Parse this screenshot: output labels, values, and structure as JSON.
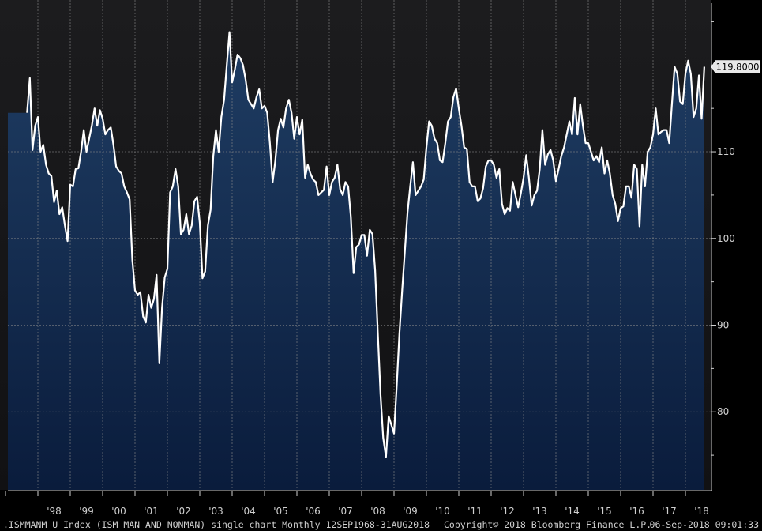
{
  "chart_data": {
    "type": "area",
    "y_axis": {
      "ticks": [
        80,
        90,
        100,
        110
      ],
      "ylim": [
        71,
        127.5
      ]
    },
    "x_axis": {
      "ticks": [
        "'98",
        "'99",
        "'00",
        "'01",
        "'02",
        "'03",
        "'04",
        "'05",
        "'06",
        "'07",
        "'08",
        "'09",
        "'10",
        "'11",
        "'12",
        "'13",
        "'14",
        "'15",
        "'16",
        "'17",
        "'18"
      ]
    },
    "last_value_label": "119.8000",
    "grid": true,
    "series": [
      {
        "points": [
          [
            "1997-09",
            114.5
          ],
          [
            "1997-10",
            118.5
          ],
          [
            "1997-11",
            110.2
          ],
          [
            "1997-12",
            113.0
          ],
          [
            "1998-01",
            114.0
          ],
          [
            "1998-02",
            110.0
          ],
          [
            "1998-03",
            110.8
          ],
          [
            "1998-04",
            108.5
          ],
          [
            "1998-05",
            107.5
          ],
          [
            "1998-06",
            107.2
          ],
          [
            "1998-07",
            104.2
          ],
          [
            "1998-08",
            105.5
          ],
          [
            "1998-09",
            102.8
          ],
          [
            "1998-10",
            103.6
          ],
          [
            "1998-11",
            101.5
          ],
          [
            "1998-12",
            99.7
          ],
          [
            "1999-01",
            106.2
          ],
          [
            "1999-02",
            106.0
          ],
          [
            "1999-03",
            108.0
          ],
          [
            "1999-04",
            108.1
          ],
          [
            "1999-05",
            110.0
          ],
          [
            "1999-06",
            112.5
          ],
          [
            "1999-07",
            110.0
          ],
          [
            "1999-08",
            111.5
          ],
          [
            "1999-09",
            113.0
          ],
          [
            "1999-10",
            115.0
          ],
          [
            "1999-11",
            113.0
          ],
          [
            "1999-12",
            114.8
          ],
          [
            "2000-01",
            113.8
          ],
          [
            "2000-02",
            112.0
          ],
          [
            "2000-03",
            112.5
          ],
          [
            "2000-04",
            112.8
          ],
          [
            "2000-05",
            110.8
          ],
          [
            "2000-06",
            108.3
          ],
          [
            "2000-07",
            107.8
          ],
          [
            "2000-08",
            107.5
          ],
          [
            "2000-09",
            106.0
          ],
          [
            "2000-10",
            105.3
          ],
          [
            "2000-11",
            104.5
          ],
          [
            "2000-12",
            97.5
          ],
          [
            "2001-01",
            94.0
          ],
          [
            "2001-02",
            93.5
          ],
          [
            "2001-03",
            93.8
          ],
          [
            "2001-04",
            91.0
          ],
          [
            "2001-05",
            90.3
          ],
          [
            "2001-06",
            93.5
          ],
          [
            "2001-07",
            92.0
          ],
          [
            "2001-08",
            93.0
          ],
          [
            "2001-09",
            95.8
          ],
          [
            "2001-10",
            85.6
          ],
          [
            "2001-11",
            92.0
          ],
          [
            "2001-12",
            95.5
          ],
          [
            "2002-01",
            96.5
          ],
          [
            "2002-02",
            105.3
          ],
          [
            "2002-03",
            106.0
          ],
          [
            "2002-04",
            108.0
          ],
          [
            "2002-05",
            106.0
          ],
          [
            "2002-06",
            100.5
          ],
          [
            "2002-07",
            101.0
          ],
          [
            "2002-08",
            102.8
          ],
          [
            "2002-09",
            100.5
          ],
          [
            "2002-10",
            101.5
          ],
          [
            "2002-11",
            104.3
          ],
          [
            "2002-12",
            104.8
          ],
          [
            "2003-01",
            101.8
          ],
          [
            "2003-02",
            95.4
          ],
          [
            "2003-03",
            96.2
          ],
          [
            "2003-04",
            101.5
          ],
          [
            "2003-05",
            103.3
          ],
          [
            "2003-06",
            109.5
          ],
          [
            "2003-07",
            112.5
          ],
          [
            "2003-08",
            110.0
          ],
          [
            "2003-09",
            114.0
          ],
          [
            "2003-10",
            116.0
          ],
          [
            "2003-11",
            120.0
          ],
          [
            "2003-12",
            123.8
          ],
          [
            "2004-01",
            118.0
          ],
          [
            "2004-02",
            119.5
          ],
          [
            "2004-03",
            121.2
          ],
          [
            "2004-04",
            120.8
          ],
          [
            "2004-05",
            120.0
          ],
          [
            "2004-06",
            118.3
          ],
          [
            "2004-07",
            116.0
          ],
          [
            "2004-08",
            115.5
          ],
          [
            "2004-09",
            115.0
          ],
          [
            "2004-10",
            116.3
          ],
          [
            "2004-11",
            117.2
          ],
          [
            "2004-12",
            115.0
          ],
          [
            "2005-01",
            115.3
          ],
          [
            "2005-02",
            114.5
          ],
          [
            "2005-03",
            111.0
          ],
          [
            "2005-04",
            106.5
          ],
          [
            "2005-05",
            109.0
          ],
          [
            "2005-06",
            112.5
          ],
          [
            "2005-07",
            113.8
          ],
          [
            "2005-08",
            112.8
          ],
          [
            "2005-09",
            115.0
          ],
          [
            "2005-10",
            116.0
          ],
          [
            "2005-11",
            114.5
          ],
          [
            "2005-12",
            111.5
          ],
          [
            "2006-01",
            114.0
          ],
          [
            "2006-02",
            112.0
          ],
          [
            "2006-03",
            113.7
          ],
          [
            "2006-04",
            107.0
          ],
          [
            "2006-05",
            108.5
          ],
          [
            "2006-06",
            107.5
          ],
          [
            "2006-07",
            106.8
          ],
          [
            "2006-08",
            106.5
          ],
          [
            "2006-09",
            105.0
          ],
          [
            "2006-10",
            105.3
          ],
          [
            "2006-11",
            105.6
          ],
          [
            "2006-12",
            108.3
          ],
          [
            "2007-01",
            105.0
          ],
          [
            "2007-02",
            106.5
          ],
          [
            "2007-03",
            107.0
          ],
          [
            "2007-04",
            108.5
          ],
          [
            "2007-05",
            105.7
          ],
          [
            "2007-06",
            105.0
          ],
          [
            "2007-07",
            106.5
          ],
          [
            "2007-08",
            106.0
          ],
          [
            "2007-09",
            102.5
          ],
          [
            "2007-10",
            96.0
          ],
          [
            "2007-11",
            99.0
          ],
          [
            "2007-12",
            99.3
          ],
          [
            "2008-01",
            100.4
          ],
          [
            "2008-02",
            100.4
          ],
          [
            "2008-03",
            98.0
          ],
          [
            "2008-04",
            101.0
          ],
          [
            "2008-05",
            100.5
          ],
          [
            "2008-06",
            96.3
          ],
          [
            "2008-07",
            89.0
          ],
          [
            "2008-08",
            82.0
          ],
          [
            "2008-09",
            77.0
          ],
          [
            "2008-10",
            74.8
          ],
          [
            "2008-11",
            79.5
          ],
          [
            "2008-12",
            78.5
          ],
          [
            "2009-01",
            77.5
          ],
          [
            "2009-02",
            83.0
          ],
          [
            "2009-03",
            89.0
          ],
          [
            "2009-04",
            94.0
          ],
          [
            "2009-05",
            98.5
          ],
          [
            "2009-06",
            103.0
          ],
          [
            "2009-07",
            106.0
          ],
          [
            "2009-08",
            108.8
          ],
          [
            "2009-09",
            105.0
          ],
          [
            "2009-10",
            105.5
          ],
          [
            "2009-11",
            106.0
          ],
          [
            "2009-12",
            106.8
          ],
          [
            "2010-01",
            110.5
          ],
          [
            "2010-02",
            113.5
          ],
          [
            "2010-03",
            113.0
          ],
          [
            "2010-04",
            111.5
          ],
          [
            "2010-05",
            111.0
          ],
          [
            "2010-06",
            109.0
          ],
          [
            "2010-07",
            108.8
          ],
          [
            "2010-08",
            111.0
          ],
          [
            "2010-09",
            113.5
          ],
          [
            "2010-10",
            114.0
          ],
          [
            "2010-11",
            116.3
          ],
          [
            "2010-12",
            117.3
          ],
          [
            "2011-01",
            115.0
          ],
          [
            "2011-02",
            113.0
          ],
          [
            "2011-03",
            110.5
          ],
          [
            "2011-04",
            110.3
          ],
          [
            "2011-05",
            106.5
          ],
          [
            "2011-06",
            106.0
          ],
          [
            "2011-07",
            106.0
          ],
          [
            "2011-08",
            104.3
          ],
          [
            "2011-09",
            104.6
          ],
          [
            "2011-10",
            105.8
          ],
          [
            "2011-11",
            108.3
          ],
          [
            "2011-12",
            109.0
          ],
          [
            "2012-01",
            109.0
          ],
          [
            "2012-02",
            108.5
          ],
          [
            "2012-03",
            107.0
          ],
          [
            "2012-04",
            108.0
          ],
          [
            "2012-05",
            104.0
          ],
          [
            "2012-06",
            102.8
          ],
          [
            "2012-07",
            103.5
          ],
          [
            "2012-08",
            103.2
          ],
          [
            "2012-09",
            106.5
          ],
          [
            "2012-10",
            105.0
          ],
          [
            "2012-11",
            103.6
          ],
          [
            "2012-12",
            105.2
          ],
          [
            "2013-01",
            107.0
          ],
          [
            "2013-02",
            109.6
          ],
          [
            "2013-03",
            107.0
          ],
          [
            "2013-04",
            103.8
          ],
          [
            "2013-05",
            105.0
          ],
          [
            "2013-06",
            105.5
          ],
          [
            "2013-07",
            108.0
          ],
          [
            "2013-08",
            112.5
          ],
          [
            "2013-09",
            108.5
          ],
          [
            "2013-10",
            109.7
          ],
          [
            "2013-11",
            110.2
          ],
          [
            "2013-12",
            109.0
          ],
          [
            "2014-01",
            106.6
          ],
          [
            "2014-02",
            108.0
          ],
          [
            "2014-03",
            109.5
          ],
          [
            "2014-04",
            110.5
          ],
          [
            "2014-05",
            112.0
          ],
          [
            "2014-06",
            113.5
          ],
          [
            "2014-07",
            112.0
          ],
          [
            "2014-08",
            116.2
          ],
          [
            "2014-09",
            112.0
          ],
          [
            "2014-10",
            115.5
          ],
          [
            "2014-11",
            113.0
          ],
          [
            "2014-12",
            111.0
          ],
          [
            "2015-01",
            111.0
          ],
          [
            "2015-02",
            110.0
          ],
          [
            "2015-03",
            109.0
          ],
          [
            "2015-04",
            109.5
          ],
          [
            "2015-05",
            108.8
          ],
          [
            "2015-06",
            110.5
          ],
          [
            "2015-07",
            107.5
          ],
          [
            "2015-08",
            109.0
          ],
          [
            "2015-09",
            107.5
          ],
          [
            "2015-10",
            105.0
          ],
          [
            "2015-11",
            104.0
          ],
          [
            "2015-12",
            102.0
          ],
          [
            "2016-01",
            103.5
          ],
          [
            "2016-02",
            103.7
          ],
          [
            "2016-03",
            106.0
          ],
          [
            "2016-04",
            106.0
          ],
          [
            "2016-05",
            104.7
          ],
          [
            "2016-06",
            108.5
          ],
          [
            "2016-07",
            108.0
          ],
          [
            "2016-08",
            101.4
          ],
          [
            "2016-09",
            108.5
          ],
          [
            "2016-10",
            106.0
          ],
          [
            "2016-11",
            110.0
          ],
          [
            "2016-12",
            110.5
          ],
          [
            "2017-01",
            112.0
          ],
          [
            "2017-02",
            115.0
          ],
          [
            "2017-03",
            112.0
          ],
          [
            "2017-04",
            112.3
          ],
          [
            "2017-05",
            112.5
          ],
          [
            "2017-06",
            112.5
          ],
          [
            "2017-07",
            111.0
          ],
          [
            "2017-08",
            115.5
          ],
          [
            "2017-09",
            119.8
          ],
          [
            "2017-10",
            119.0
          ],
          [
            "2017-11",
            115.8
          ],
          [
            "2017-12",
            115.5
          ],
          [
            "2018-01",
            119.0
          ],
          [
            "2018-02",
            120.5
          ],
          [
            "2018-03",
            119.0
          ],
          [
            "2018-04",
            114.0
          ],
          [
            "2018-05",
            115.0
          ],
          [
            "2018-06",
            118.8
          ],
          [
            "2018-07",
            113.8
          ],
          [
            "2018-08",
            119.8
          ]
        ]
      }
    ]
  },
  "footer": {
    "left": ".ISMMANM U Index (ISM MAN AND NONMAN) single chart  Monthly 12SEP1968-31AUG2018",
    "center": "Copyright© 2018 Bloomberg Finance L.P.",
    "right": "06-Sep-2018 09:01:33"
  },
  "colors": {
    "background": "#000000",
    "plot_top": "#1a1a1c",
    "area_fill_top": "#1f3d63",
    "area_fill_bottom": "#0a1c3c",
    "line": "#ffffff",
    "grid": "#8a8a8a",
    "label_bg": "#e8e8e8"
  }
}
